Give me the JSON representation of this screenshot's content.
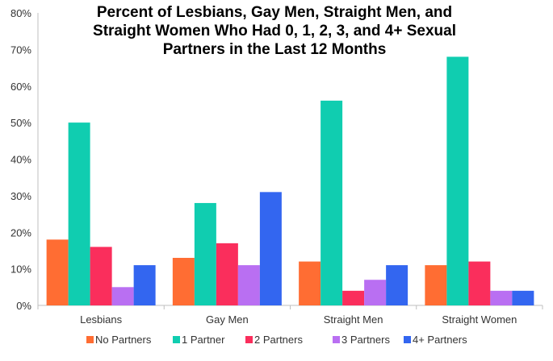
{
  "chart_data": {
    "type": "bar",
    "title_lines": [
      "Percent of Lesbians, Gay Men, Straight Men, and",
      "Straight Women Who Had 0, 1, 2, 3, and 4+ Sexual",
      "Partners in the Last 12 Months"
    ],
    "xlabel": "",
    "ylabel": "",
    "categories": [
      "Lesbians",
      "Gay Men",
      "Straight Men",
      "Straight Women"
    ],
    "ylim": [
      0,
      80
    ],
    "y_ticks": [
      "0%",
      "10%",
      "20%",
      "30%",
      "40%",
      "50%",
      "60%",
      "70%",
      "80%"
    ],
    "grid": false,
    "legend_position": "bottom",
    "series": [
      {
        "name": "No Partners",
        "color": "#FF6D33",
        "values": [
          18,
          13,
          12,
          11
        ]
      },
      {
        "name": "1 Partner",
        "color": "#10CDB0",
        "values": [
          50,
          28,
          56,
          68
        ]
      },
      {
        "name": "2 Partners",
        "color": "#FA2E5C",
        "values": [
          16,
          17,
          4,
          12
        ]
      },
      {
        "name": "3 Partners",
        "color": "#B96FF2",
        "values": [
          5,
          11,
          7,
          4
        ]
      },
      {
        "name": "4+ Partners",
        "color": "#3366F0",
        "values": [
          11,
          31,
          11,
          4
        ]
      }
    ]
  }
}
